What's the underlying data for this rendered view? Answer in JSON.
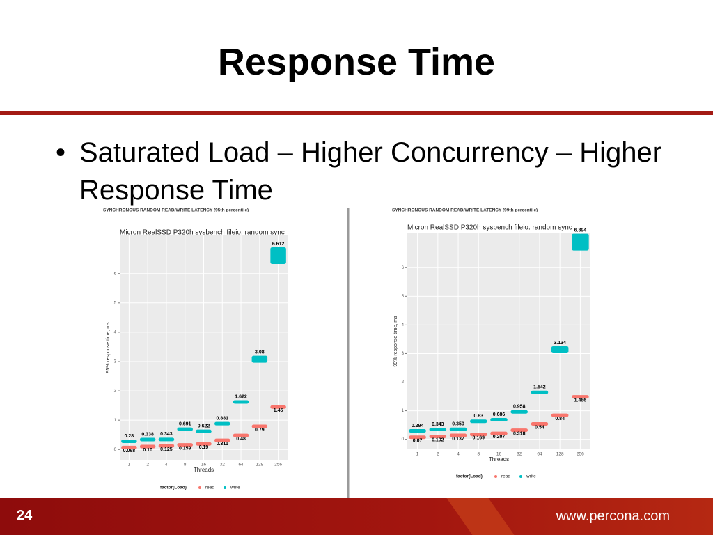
{
  "slide": {
    "title": "Response Time",
    "bullet": "Saturated Load – Higher Concurrency – Higher Response Time",
    "page_number": "24",
    "footer_url": "www.percona.com"
  },
  "chart_data": [
    {
      "type": "scatter",
      "title": "SYNCHRONOUS RANDOM READ/WRITE LATENCY (95th percentile)",
      "subtitle": "Micron RealSSD P320h  sysbench fileio. random sync",
      "x_label": "Threads",
      "y_label": "95% response time, ms",
      "categories": [
        "1",
        "2",
        "4",
        "8",
        "16",
        "32",
        "64",
        "128",
        "256"
      ],
      "ylim": [
        -0.35,
        7.3
      ],
      "yticks": [
        0,
        1,
        2,
        3,
        4,
        5,
        6
      ],
      "grid": true,
      "legend_title": "factor(Load)",
      "series": [
        {
          "name": "read",
          "color": "#f8766d",
          "values": [
            0.068,
            0.1,
            0.125,
            0.159,
            0.19,
            0.311,
            0.48,
            0.79,
            1.45
          ],
          "value_labels": [
            "0.068",
            "0.10",
            "0.125",
            "0.159",
            "0.19",
            "0.311",
            "0.48",
            "0.79",
            "1.45"
          ]
        },
        {
          "name": "write",
          "color": "#00bfc4",
          "values": [
            0.28,
            0.338,
            0.343,
            0.691,
            0.622,
            0.881,
            1.622,
            3.08,
            6.612
          ],
          "value_labels": [
            "0.28",
            "0.338",
            "0.343",
            "0.691",
            "0.622",
            "0.881",
            "1.622",
            "3.08",
            "6.612"
          ]
        }
      ]
    },
    {
      "type": "scatter",
      "title": "SYNCHRONOUS RANDOM READ/WRITE LATENCY (99th percentile)",
      "subtitle": "Micron RealSSD P320h  sysbench fileio. random sync",
      "x_label": "Threads",
      "y_label": "99% response time, ms",
      "categories": [
        "1",
        "2",
        "4",
        "8",
        "16",
        "32",
        "64",
        "128",
        "256"
      ],
      "ylim": [
        -0.35,
        7.2
      ],
      "yticks": [
        0,
        1,
        2,
        3,
        4,
        5,
        6
      ],
      "grid": true,
      "legend_title": "factor(Load)",
      "series": [
        {
          "name": "read",
          "color": "#f8766d",
          "values": [
            0.07,
            0.102,
            0.137,
            0.169,
            0.207,
            0.318,
            0.54,
            0.84,
            1.486
          ],
          "value_labels": [
            "0.07",
            "0.102",
            "0.137",
            "0.169",
            "0.207",
            "0.318",
            "0.54",
            "0.84",
            "1.486"
          ]
        },
        {
          "name": "write",
          "color": "#00bfc4",
          "values": [
            0.294,
            0.343,
            0.35,
            0.63,
            0.686,
            0.958,
            1.642,
            3.134,
            6.894
          ],
          "value_labels": [
            "0.294",
            "0.343",
            "0.350",
            "0.63",
            "0.686",
            "0.958",
            "1.642",
            "3.134",
            "6.894"
          ]
        }
      ]
    }
  ]
}
